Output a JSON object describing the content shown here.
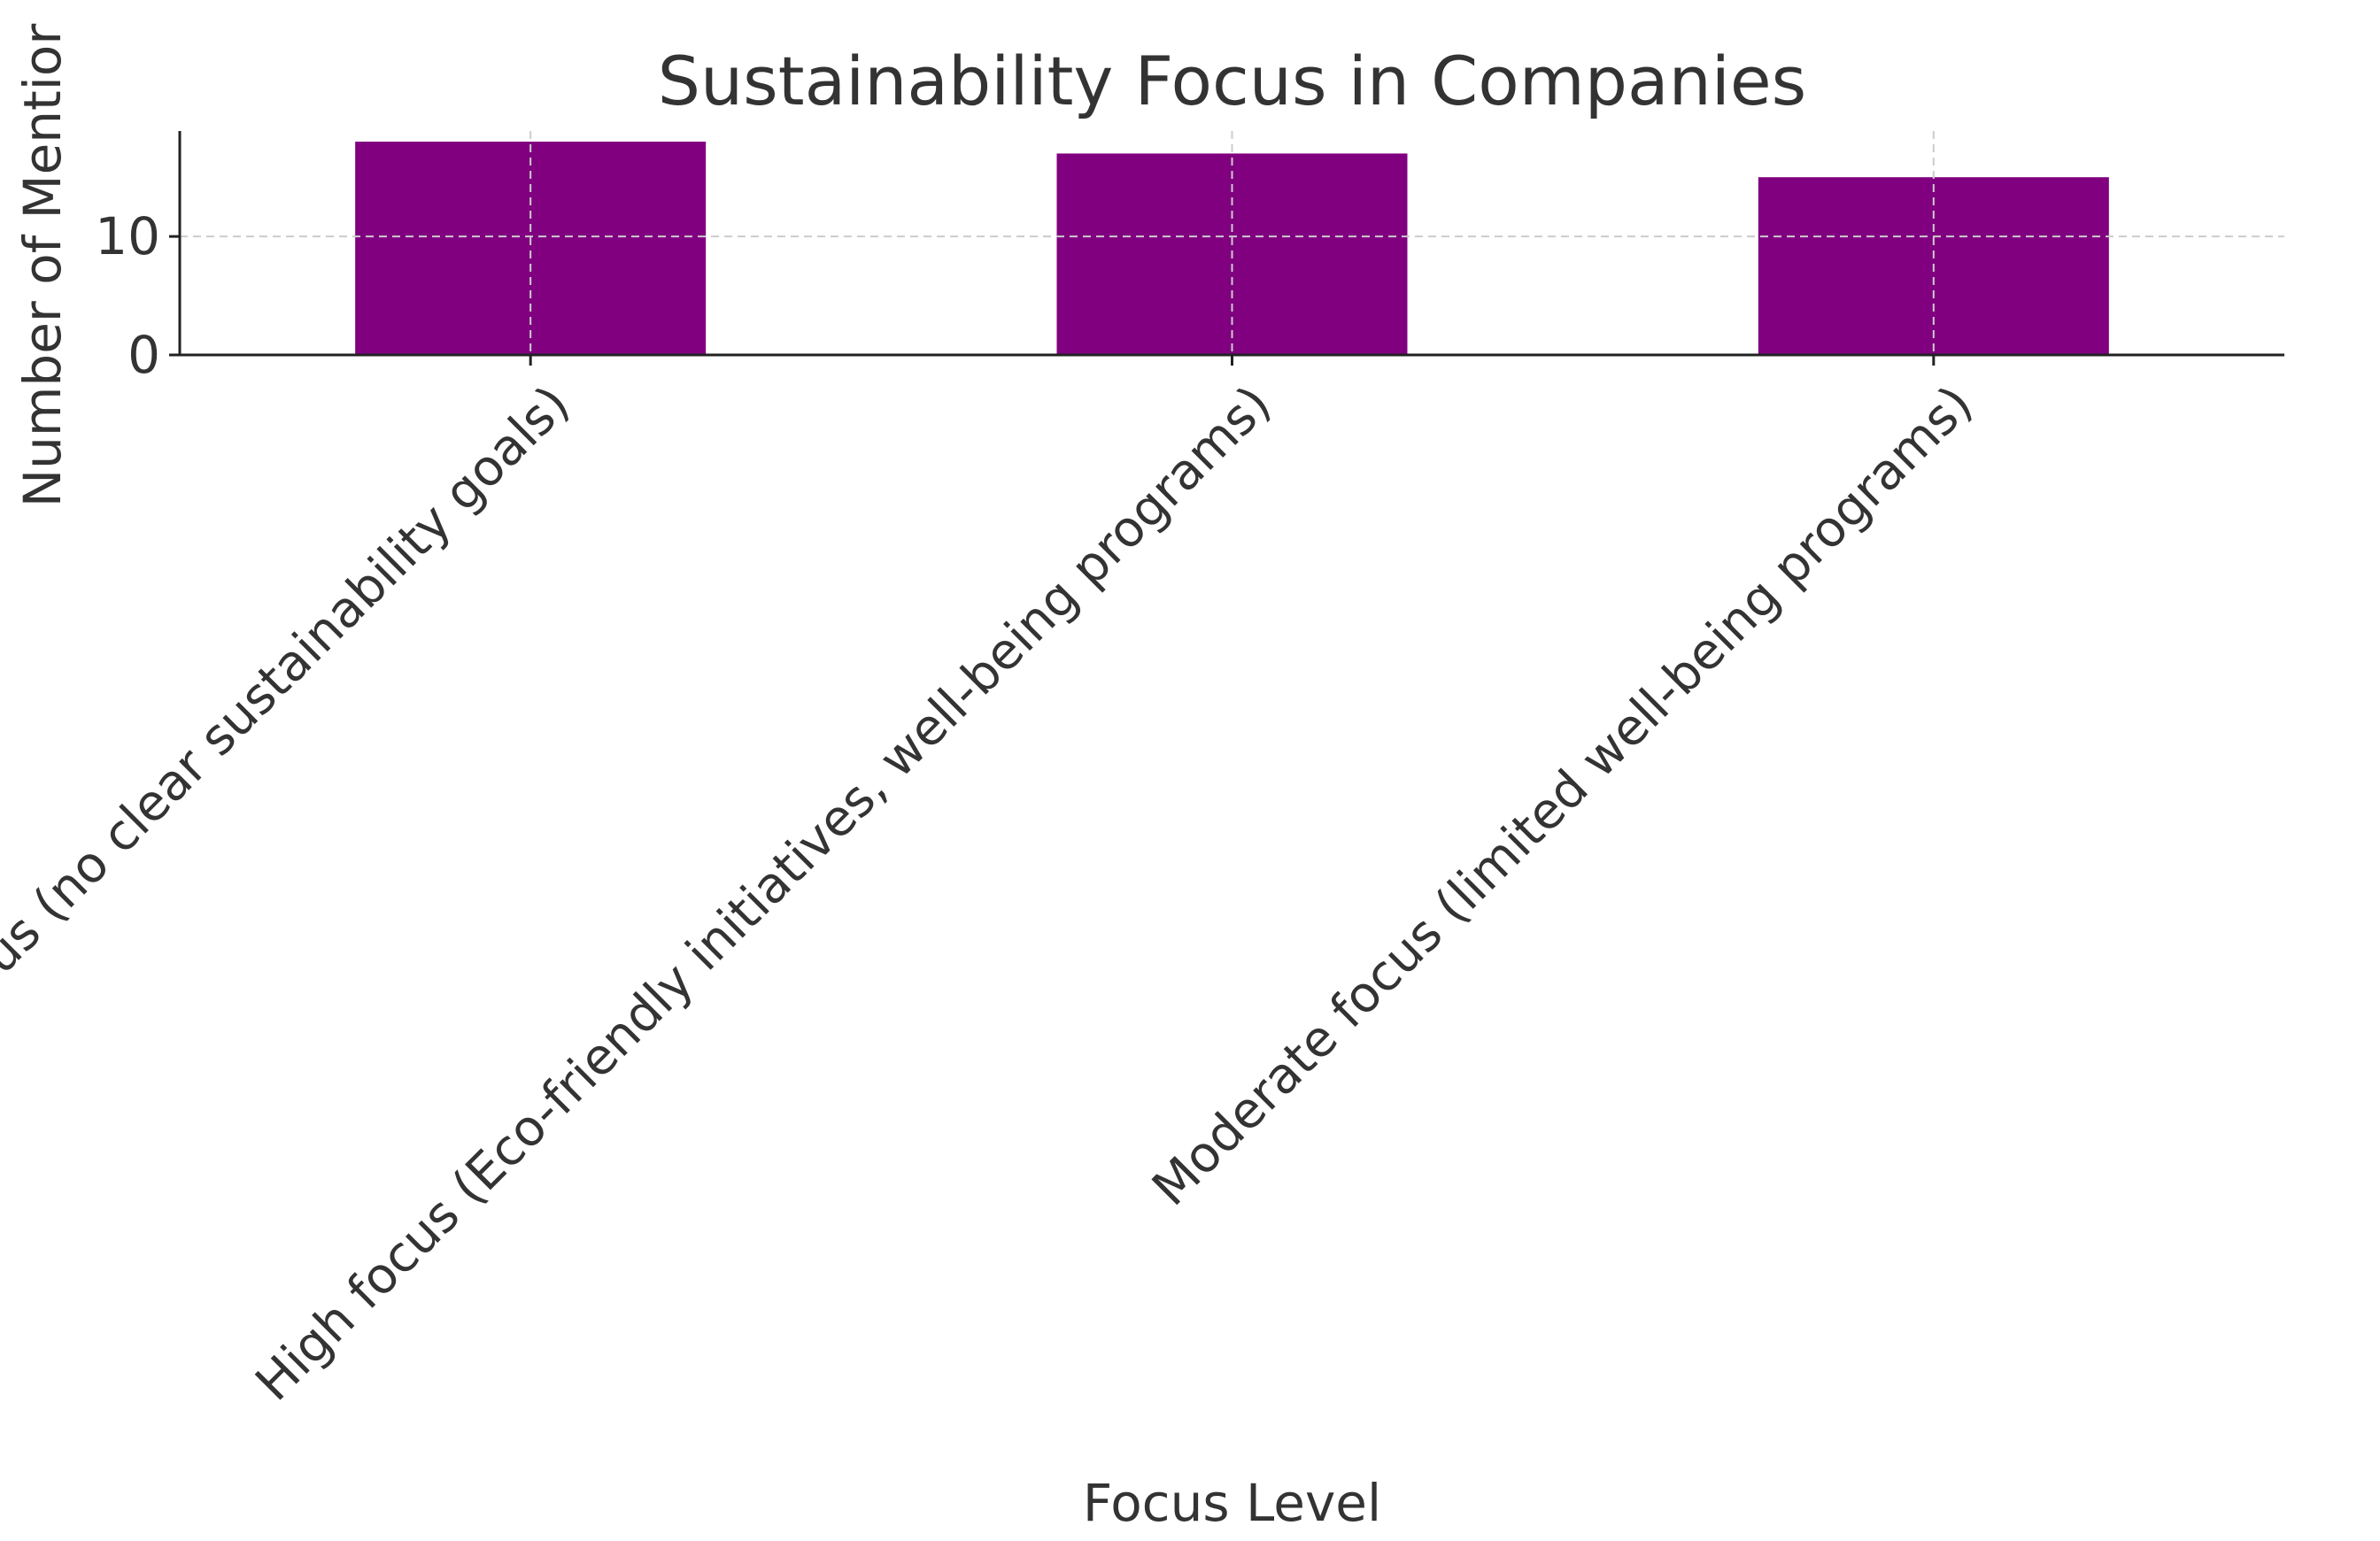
{
  "chart_data": {
    "type": "bar",
    "title": "Sustainability Focus in Companies",
    "xlabel": "Focus Level",
    "ylabel": "Number of Mentior",
    "categories": [
      "Low focus (no clear sustainability goals)",
      "High focus (Eco-friendly initiatives, well-being programs)",
      "Moderate focus (limited well-being programs)"
    ],
    "values": [
      18,
      17,
      15
    ],
    "ylim": [
      0,
      18.9
    ],
    "yticks": [
      0,
      10
    ],
    "grid": true,
    "bar_color": "#800080",
    "grid_color": "#cccccc",
    "text_color": "#333333",
    "axis_color": "#222222"
  }
}
